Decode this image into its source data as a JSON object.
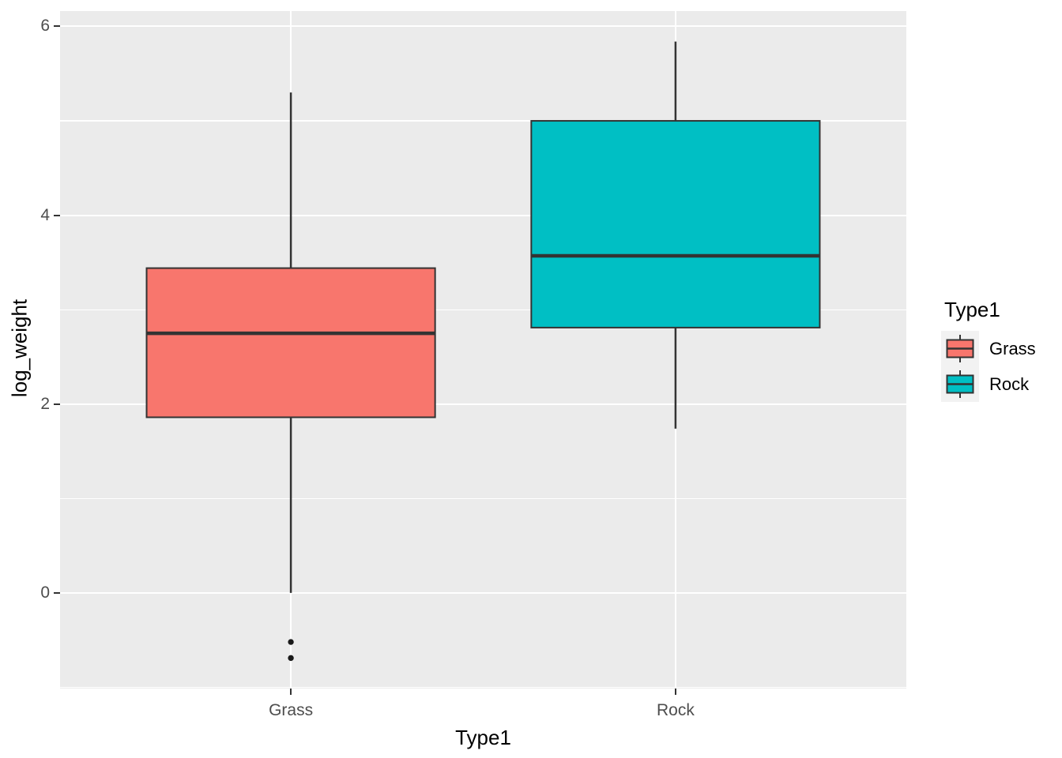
{
  "chart_data": {
    "type": "boxplot",
    "xlabel": "Type1",
    "ylabel": "log_weight",
    "categories": [
      "Grass",
      "Rock"
    ],
    "series": [
      {
        "name": "Grass",
        "color": "#F8766D",
        "whisker_low": 0.0,
        "q1": 1.86,
        "median": 2.75,
        "q3": 3.44,
        "whisker_high": 5.3,
        "outliers": [
          -0.52,
          -0.69
        ]
      },
      {
        "name": "Rock",
        "color": "#00BFC4",
        "whisker_low": 1.74,
        "q1": 2.81,
        "median": 3.57,
        "q3": 5.0,
        "whisker_high": 5.84,
        "outliers": []
      }
    ],
    "y_major_ticks": [
      0,
      2,
      4,
      6
    ],
    "y_minor_ticks": [
      -1,
      1,
      3,
      5
    ],
    "ylim": [
      -1.013,
      6.163
    ],
    "grid": true,
    "legend": {
      "title": "Type1",
      "position": "right"
    }
  },
  "style": {
    "panel_bg": "#EBEBEB",
    "grid_color": "#FFFFFF",
    "box_stroke": "#333333",
    "outlier_color": "#1A1A1A",
    "tick_label_color": "#4D4D4D",
    "axis_title_color": "#000000",
    "legend_key_bg": "#F2F2F2"
  }
}
